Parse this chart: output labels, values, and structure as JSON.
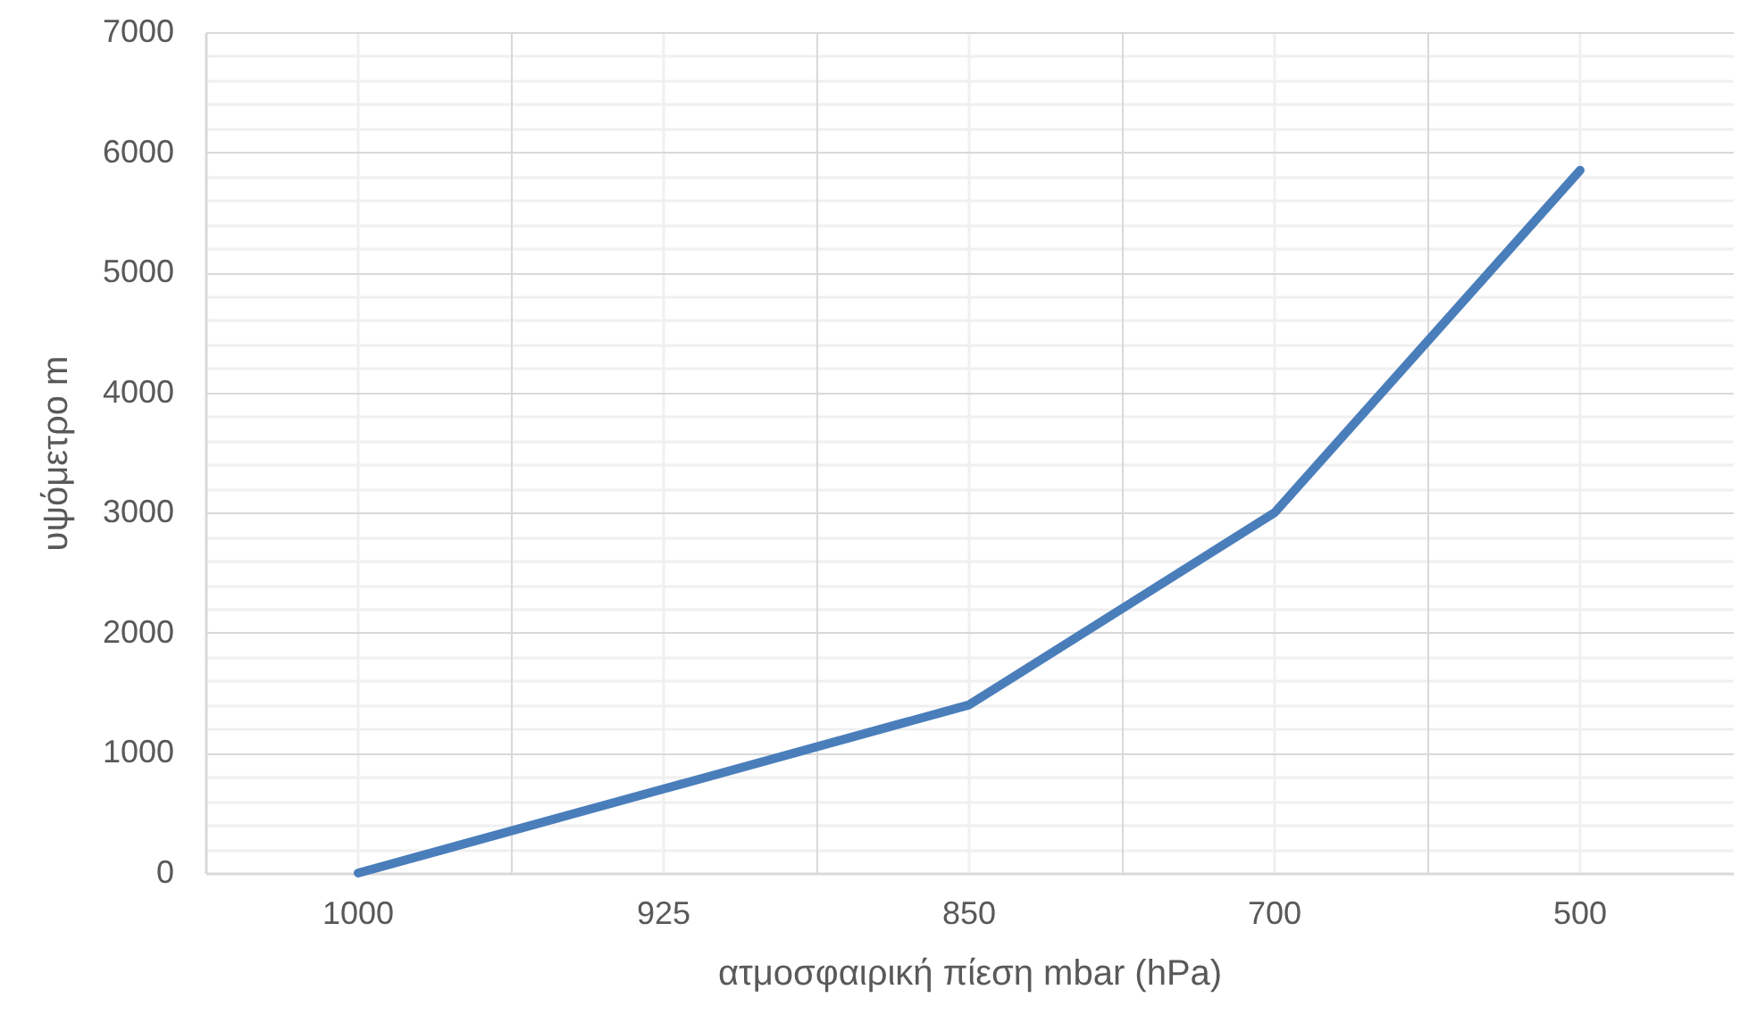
{
  "chart_data": {
    "type": "line",
    "xlabel": "ατμοσφαιρική πίεση mbar (hPa)",
    "ylabel": "υψόμετρο m",
    "categories": [
      "1000",
      "925",
      "850",
      "700",
      "500"
    ],
    "series": [
      {
        "color": "#4a7ebb",
        "values": [
          0,
          700,
          1400,
          3000,
          5850
        ]
      }
    ],
    "ylim": [
      0,
      7000
    ],
    "yticks": [
      0,
      1000,
      2000,
      3000,
      4000,
      5000,
      6000,
      7000
    ],
    "grid": true
  }
}
